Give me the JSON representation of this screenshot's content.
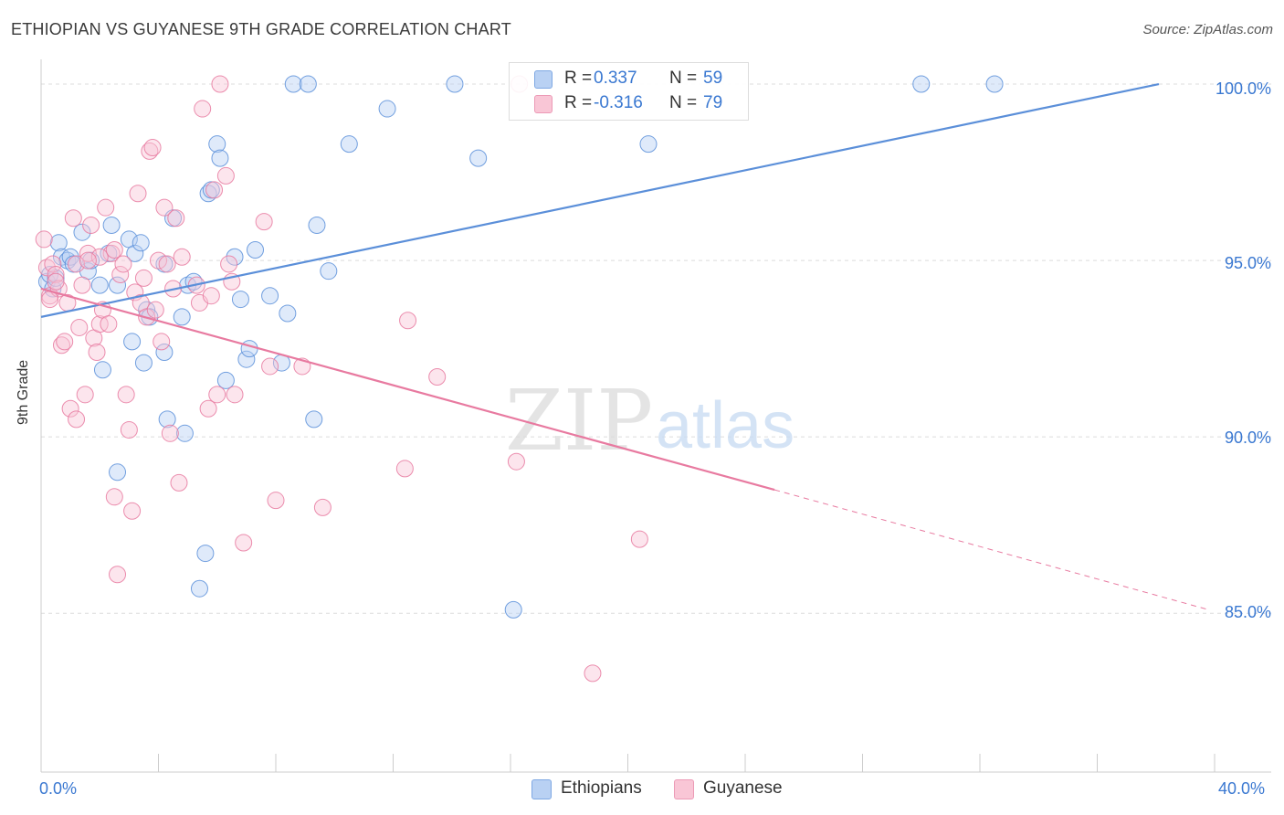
{
  "title": "ETHIOPIAN VS GUYANESE 9TH GRADE CORRELATION CHART",
  "source": "Source: ZipAtlas.com",
  "watermark": {
    "zip": "ZIP",
    "atlas": "atlas"
  },
  "legend": {
    "rows": [
      {
        "r_label": "R =",
        "r_value": "0.337",
        "n_label": "N =",
        "n_value": "59",
        "color": "#a9c7f0"
      },
      {
        "r_label": "R =",
        "r_value": "-0.316",
        "n_label": "N =",
        "n_value": "79",
        "color": "#f6b8cb"
      }
    ]
  },
  "chart_data": {
    "type": "scatter",
    "title": "ETHIOPIAN VS GUYANESE 9TH GRADE CORRELATION CHART",
    "xlabel": "",
    "ylabel": "9th Grade",
    "xlim": [
      0,
      40
    ],
    "ylim": [
      80.5,
      100.7
    ],
    "x_tick_labels": [
      "0.0%",
      "40.0%"
    ],
    "y_ticks": [
      100,
      95,
      90,
      85
    ],
    "y_tick_labels": [
      "100.0%",
      "95.0%",
      "90.0%",
      "85.0%"
    ],
    "grid": true,
    "legend_position": "top-center",
    "series": [
      {
        "name": "Ethiopians",
        "color": "#5b8fd9",
        "fill": "#b9d1f3",
        "r": 0.337,
        "n": 59,
        "trend": {
          "x0": 0,
          "y0": 93.4,
          "x1": 38.1,
          "y1": 100.0,
          "dashed_to": null
        },
        "points": [
          [
            0.2,
            94.4
          ],
          [
            0.3,
            94.6
          ],
          [
            0.4,
            94.2
          ],
          [
            0.5,
            94.5
          ],
          [
            0.6,
            95.5
          ],
          [
            0.7,
            95.1
          ],
          [
            0.9,
            95.0
          ],
          [
            1.0,
            95.1
          ],
          [
            1.1,
            94.9
          ],
          [
            1.4,
            95.8
          ],
          [
            1.6,
            94.7
          ],
          [
            1.7,
            95.0
          ],
          [
            2.0,
            94.3
          ],
          [
            2.1,
            91.9
          ],
          [
            2.3,
            95.2
          ],
          [
            2.4,
            96.0
          ],
          [
            2.6,
            94.3
          ],
          [
            3.0,
            95.6
          ],
          [
            3.1,
            92.7
          ],
          [
            3.2,
            95.2
          ],
          [
            3.4,
            95.5
          ],
          [
            3.5,
            92.1
          ],
          [
            3.6,
            93.6
          ],
          [
            3.7,
            93.4
          ],
          [
            4.2,
            94.9
          ],
          [
            4.2,
            92.4
          ],
          [
            4.3,
            90.5
          ],
          [
            4.5,
            96.2
          ],
          [
            4.8,
            93.4
          ],
          [
            4.9,
            90.1
          ],
          [
            5.0,
            94.3
          ],
          [
            5.2,
            94.4
          ],
          [
            5.4,
            85.7
          ],
          [
            5.6,
            86.7
          ],
          [
            5.7,
            96.9
          ],
          [
            5.8,
            97.0
          ],
          [
            6.0,
            98.3
          ],
          [
            6.1,
            97.9
          ],
          [
            6.3,
            91.6
          ],
          [
            6.6,
            95.1
          ],
          [
            6.8,
            93.9
          ],
          [
            7.0,
            92.2
          ],
          [
            7.1,
            92.5
          ],
          [
            7.3,
            95.3
          ],
          [
            7.8,
            94.0
          ],
          [
            8.2,
            92.1
          ],
          [
            8.4,
            93.5
          ],
          [
            8.6,
            100.0
          ],
          [
            9.1,
            100.0
          ],
          [
            9.3,
            90.5
          ],
          [
            9.4,
            96.0
          ],
          [
            9.8,
            94.7
          ],
          [
            10.5,
            98.3
          ],
          [
            11.8,
            99.3
          ],
          [
            14.1,
            100.0
          ],
          [
            14.9,
            97.9
          ],
          [
            16.1,
            85.1
          ],
          [
            20.7,
            98.3
          ],
          [
            30.0,
            100.0
          ],
          [
            32.5,
            100.0
          ],
          [
            2.6,
            89.0
          ]
        ]
      },
      {
        "name": "Guyanese",
        "color": "#e87aa0",
        "fill": "#f9c6d6",
        "r": -0.316,
        "n": 79,
        "trend": {
          "x0": 0,
          "y0": 94.2,
          "x1": 25.0,
          "y1": 88.5,
          "dashed_to": {
            "x": 39.8,
            "y": 85.1
          }
        },
        "points": [
          [
            0.1,
            95.6
          ],
          [
            0.2,
            94.8
          ],
          [
            0.3,
            94.0
          ],
          [
            0.4,
            94.9
          ],
          [
            0.5,
            94.6
          ],
          [
            0.6,
            94.2
          ],
          [
            0.7,
            92.6
          ],
          [
            0.8,
            92.7
          ],
          [
            0.9,
            93.8
          ],
          [
            1.0,
            90.8
          ],
          [
            1.1,
            96.2
          ],
          [
            1.2,
            90.5
          ],
          [
            1.3,
            93.1
          ],
          [
            1.4,
            94.3
          ],
          [
            1.5,
            91.2
          ],
          [
            1.6,
            95.2
          ],
          [
            1.7,
            96.0
          ],
          [
            1.8,
            92.8
          ],
          [
            1.9,
            92.4
          ],
          [
            2.0,
            93.2
          ],
          [
            2.1,
            93.6
          ],
          [
            2.2,
            96.5
          ],
          [
            2.3,
            93.2
          ],
          [
            2.4,
            95.2
          ],
          [
            2.5,
            88.3
          ],
          [
            2.6,
            86.1
          ],
          [
            2.7,
            94.6
          ],
          [
            2.8,
            94.9
          ],
          [
            2.9,
            91.2
          ],
          [
            3.0,
            90.2
          ],
          [
            3.1,
            87.9
          ],
          [
            3.2,
            94.1
          ],
          [
            3.3,
            96.9
          ],
          [
            3.4,
            93.8
          ],
          [
            3.5,
            94.5
          ],
          [
            3.6,
            93.4
          ],
          [
            3.7,
            98.1
          ],
          [
            3.8,
            98.2
          ],
          [
            3.9,
            93.6
          ],
          [
            4.0,
            95.0
          ],
          [
            4.1,
            92.7
          ],
          [
            4.2,
            96.5
          ],
          [
            4.3,
            94.9
          ],
          [
            4.4,
            90.1
          ],
          [
            4.5,
            94.2
          ],
          [
            4.6,
            96.2
          ],
          [
            4.7,
            88.7
          ],
          [
            4.8,
            95.1
          ],
          [
            5.3,
            94.3
          ],
          [
            5.4,
            93.8
          ],
          [
            5.5,
            99.3
          ],
          [
            5.7,
            90.8
          ],
          [
            5.8,
            94.0
          ],
          [
            5.9,
            97.0
          ],
          [
            6.0,
            91.2
          ],
          [
            6.1,
            100.0
          ],
          [
            6.3,
            97.4
          ],
          [
            6.4,
            94.9
          ],
          [
            6.5,
            94.4
          ],
          [
            6.6,
            91.2
          ],
          [
            6.9,
            87.0
          ],
          [
            7.6,
            96.1
          ],
          [
            7.8,
            92.0
          ],
          [
            8.0,
            88.2
          ],
          [
            8.9,
            92.0
          ],
          [
            9.6,
            88.0
          ],
          [
            12.4,
            89.1
          ],
          [
            12.5,
            93.3
          ],
          [
            13.5,
            91.7
          ],
          [
            16.2,
            89.3
          ],
          [
            16.3,
            100.0
          ],
          [
            18.8,
            83.3
          ],
          [
            20.4,
            87.1
          ],
          [
            1.2,
            94.9
          ],
          [
            2.0,
            95.1
          ],
          [
            2.5,
            95.3
          ],
          [
            0.5,
            94.4
          ],
          [
            1.6,
            95.0
          ],
          [
            0.3,
            93.9
          ]
        ]
      }
    ]
  },
  "bottom_legend": {
    "items": [
      {
        "label": "Ethiopians"
      },
      {
        "label": "Guyanese"
      }
    ]
  }
}
